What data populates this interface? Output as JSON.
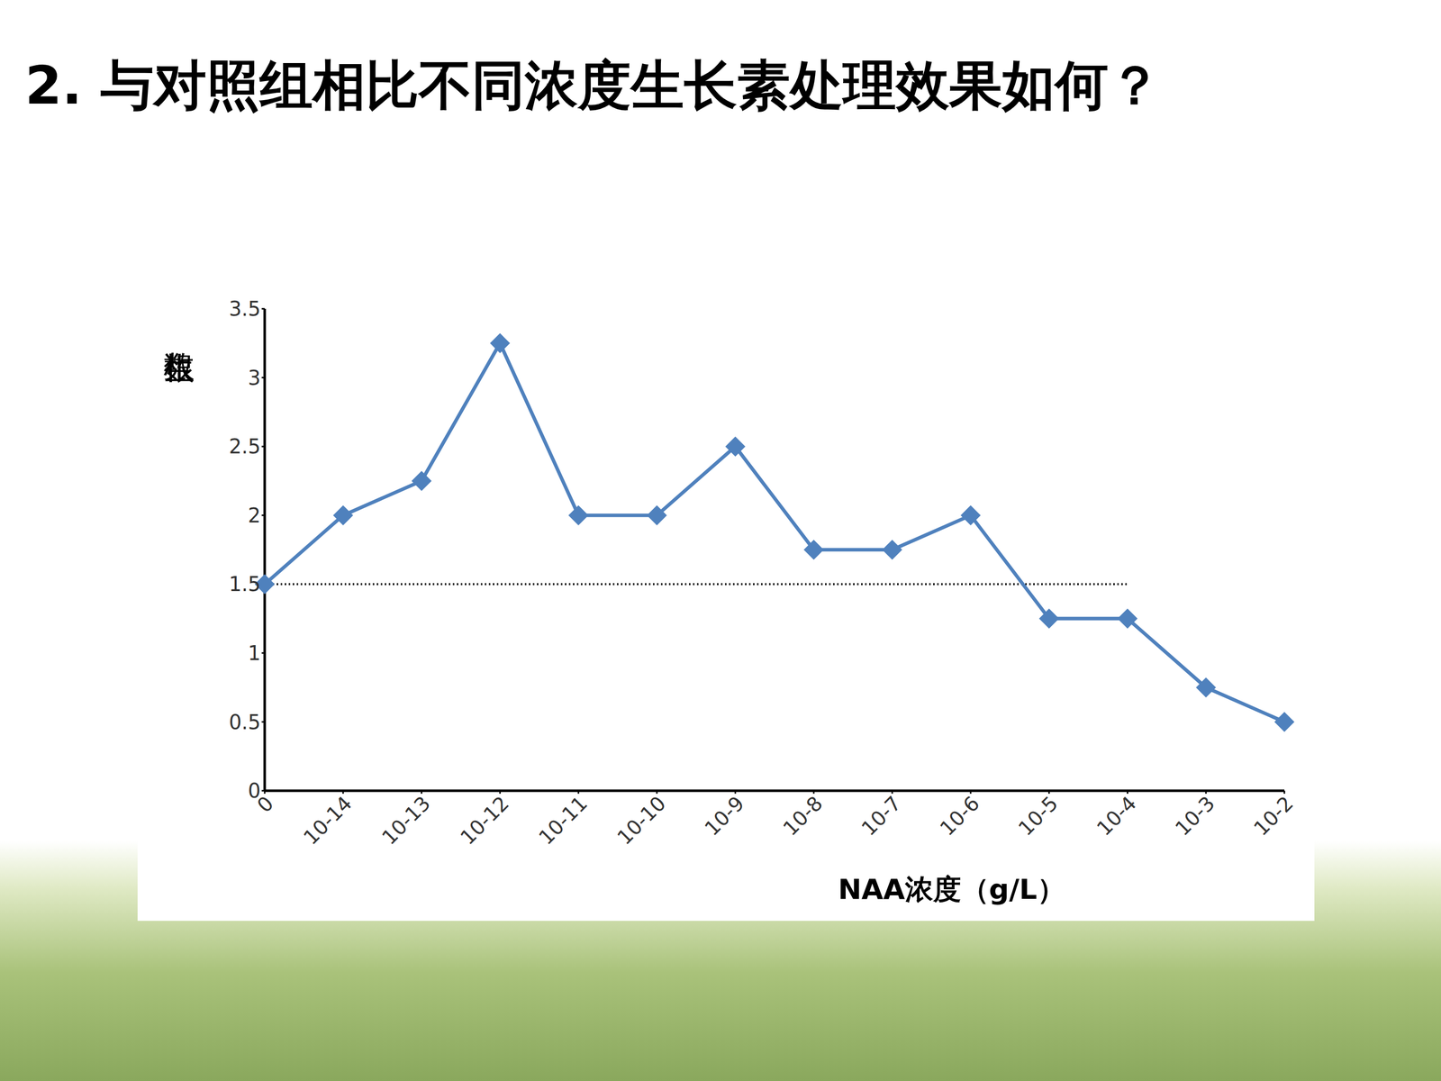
{
  "chart_data": {
    "type": "line",
    "title": "2. 与对照组相比不同浓度生长素处理效果如何？",
    "x_label": "NAA浓度（g/L）",
    "y_label": "生根数",
    "categories": [
      "0",
      "10-14",
      "10-13",
      "10-12",
      "10-11",
      "10-10",
      "10-9",
      "10-8",
      "10-7",
      "10-6",
      "10-5",
      "10-4",
      "10-3",
      "10-2"
    ],
    "values": [
      1.5,
      2,
      2.25,
      3.25,
      2,
      2,
      2.5,
      1.75,
      1.75,
      2,
      1.25,
      1.25,
      0.75,
      0.5
    ],
    "color": "#4f81bd",
    "marker": "diamond",
    "ylim": [
      0,
      3.5
    ],
    "yticks": [
      0,
      0.5,
      1,
      1.5,
      2,
      2.5,
      3,
      3.5
    ],
    "grid": false,
    "reference_line": {
      "y": 1.5,
      "x_start": "0",
      "x_end": "10-4",
      "line_style": "dotted"
    }
  }
}
